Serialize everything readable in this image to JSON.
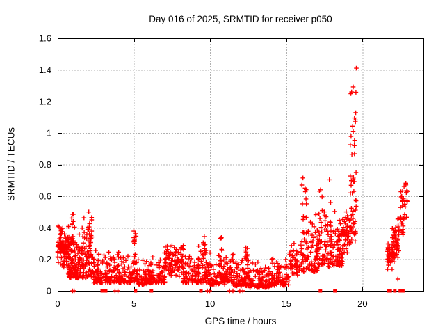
{
  "chart_data": {
    "type": "scatter",
    "title": "Day 016 of 2025, SRMTID for receiver p050",
    "xlabel": "GPS time / hours",
    "ylabel": "SRMTID / TECUs",
    "xlim": [
      0,
      24
    ],
    "ylim": [
      0,
      1.6
    ],
    "xticks": [
      0,
      5,
      10,
      15,
      20
    ],
    "yticks": [
      0,
      0.2,
      0.4,
      0.6,
      0.8,
      1,
      1.2,
      1.4,
      1.6
    ],
    "ytick_labels": [
      "0",
      "0.2",
      "0.4",
      "0.6",
      "0.8",
      "1",
      "1.2",
      "1.4",
      "1.6"
    ],
    "grid": true,
    "grid_style": "dotted",
    "legend": "none",
    "marker": {
      "shape": "plus",
      "color": "#ff0000",
      "size": 6.6,
      "stroke_width": 1.4
    },
    "colors": {
      "marker": "#ff0000",
      "grid": "#b0b0b0",
      "axis": "#000000",
      "text": "#000000",
      "background": "#ffffff"
    },
    "max_point": [
      19.4,
      1.46
    ],
    "scatter_segments": [
      {
        "x0": 0.0,
        "x1": 0.38,
        "n": 55,
        "y0": 0.13,
        "y1": 0.42,
        "skew": "mid"
      },
      {
        "x0": 0.35,
        "x1": 0.75,
        "n": 55,
        "y0": 0.1,
        "y1": 0.38,
        "skew": "mid"
      },
      {
        "x0": 0.7,
        "x1": 1.15,
        "n": 60,
        "y0": 0.08,
        "y1": 0.5,
        "skew": "low"
      },
      {
        "x0": 0.88,
        "x1": 1.05,
        "n": 10,
        "y0": 0.3,
        "y1": 0.5,
        "skew": "uniform"
      },
      {
        "x0": 1.1,
        "x1": 1.65,
        "n": 60,
        "y0": 0.08,
        "y1": 0.4,
        "skew": "low"
      },
      {
        "x0": 1.6,
        "x1": 2.3,
        "n": 70,
        "y0": 0.08,
        "y1": 0.5,
        "skew": "low"
      },
      {
        "x0": 1.95,
        "x1": 2.25,
        "n": 12,
        "y0": 0.3,
        "y1": 0.5,
        "skew": "uniform"
      },
      {
        "x0": 2.3,
        "x1": 3.05,
        "n": 55,
        "y0": 0.05,
        "y1": 0.3,
        "skew": "low"
      },
      {
        "x0": 3.0,
        "x1": 4.05,
        "n": 70,
        "y0": 0.05,
        "y1": 0.26,
        "skew": "low"
      },
      {
        "x0": 4.0,
        "x1": 4.85,
        "n": 55,
        "y0": 0.05,
        "y1": 0.24,
        "skew": "low"
      },
      {
        "x0": 4.8,
        "x1": 5.3,
        "n": 40,
        "y0": 0.06,
        "y1": 0.38,
        "skew": "low"
      },
      {
        "x0": 4.95,
        "x1": 5.15,
        "n": 8,
        "y0": 0.25,
        "y1": 0.38,
        "skew": "uniform"
      },
      {
        "x0": 5.25,
        "x1": 6.15,
        "n": 60,
        "y0": 0.04,
        "y1": 0.22,
        "skew": "low"
      },
      {
        "x0": 6.1,
        "x1": 7.05,
        "n": 65,
        "y0": 0.05,
        "y1": 0.26,
        "skew": "low"
      },
      {
        "x0": 7.0,
        "x1": 8.25,
        "n": 90,
        "y0": 0.07,
        "y1": 0.3,
        "skew": "mid"
      },
      {
        "x0": 8.2,
        "x1": 9.25,
        "n": 70,
        "y0": 0.05,
        "y1": 0.28,
        "skew": "low"
      },
      {
        "x0": 9.2,
        "x1": 9.95,
        "n": 55,
        "y0": 0.05,
        "y1": 0.33,
        "skew": "low"
      },
      {
        "x0": 9.5,
        "x1": 9.7,
        "n": 8,
        "y0": 0.22,
        "y1": 0.35,
        "skew": "uniform"
      },
      {
        "x0": 9.9,
        "x1": 11.0,
        "n": 75,
        "y0": 0.04,
        "y1": 0.28,
        "skew": "low"
      },
      {
        "x0": 10.55,
        "x1": 10.78,
        "n": 10,
        "y0": 0.15,
        "y1": 0.35,
        "skew": "uniform"
      },
      {
        "x0": 11.0,
        "x1": 11.55,
        "n": 40,
        "y0": 0.06,
        "y1": 0.3,
        "skew": "low"
      },
      {
        "x0": 11.5,
        "x1": 12.65,
        "n": 80,
        "y0": 0.03,
        "y1": 0.26,
        "skew": "low"
      },
      {
        "x0": 12.25,
        "x1": 12.5,
        "n": 10,
        "y0": 0.15,
        "y1": 0.3,
        "skew": "uniform"
      },
      {
        "x0": 12.6,
        "x1": 13.85,
        "n": 85,
        "y0": 0.02,
        "y1": 0.2,
        "skew": "low"
      },
      {
        "x0": 13.8,
        "x1": 15.25,
        "n": 90,
        "y0": 0.03,
        "y1": 0.22,
        "skew": "low"
      },
      {
        "x0": 15.2,
        "x1": 16.02,
        "n": 55,
        "y0": 0.05,
        "y1": 0.32,
        "skew": "mid"
      },
      {
        "x0": 16.0,
        "x1": 16.35,
        "n": 35,
        "y0": 0.12,
        "y1": 0.73,
        "skew": "pow"
      },
      {
        "x0": 16.3,
        "x1": 17.1,
        "n": 70,
        "y0": 0.12,
        "y1": 0.62,
        "skew": "low"
      },
      {
        "x0": 17.1,
        "x1": 17.95,
        "n": 75,
        "y0": 0.15,
        "y1": 0.77,
        "skew": "low"
      },
      {
        "x0": 17.9,
        "x1": 18.7,
        "n": 70,
        "y0": 0.16,
        "y1": 0.58,
        "skew": "low"
      },
      {
        "x0": 18.65,
        "x1": 19.2,
        "n": 45,
        "y0": 0.2,
        "y1": 0.55,
        "skew": "mid"
      },
      {
        "x0": 19.18,
        "x1": 19.6,
        "n": 55,
        "y0": 0.3,
        "y1": 1.47,
        "skew": "pow"
      },
      {
        "x0": 21.62,
        "x1": 22.12,
        "n": 45,
        "y0": 0.13,
        "y1": 0.34,
        "skew": "mid"
      },
      {
        "x0": 21.95,
        "x1": 22.4,
        "n": 40,
        "y0": 0.15,
        "y1": 0.43,
        "skew": "mid"
      },
      {
        "x0": 22.3,
        "x1": 22.72,
        "n": 20,
        "y0": 0.28,
        "y1": 0.55,
        "skew": "mid"
      },
      {
        "x0": 22.5,
        "x1": 22.95,
        "n": 20,
        "y0": 0.42,
        "y1": 0.71,
        "skew": "mid"
      }
    ],
    "zero_markers": [
      {
        "x": 0.98,
        "style": "tick"
      },
      {
        "x": 1.08,
        "style": "tick"
      },
      {
        "x": 2.92,
        "style": "square"
      },
      {
        "x": 3.15,
        "style": "square"
      },
      {
        "x": 3.76,
        "style": "tick"
      },
      {
        "x": 3.95,
        "style": "tick"
      },
      {
        "x": 5.1,
        "style": "square"
      },
      {
        "x": 6.15,
        "style": "square"
      },
      {
        "x": 9.4,
        "style": "square"
      },
      {
        "x": 9.82,
        "style": "tick"
      },
      {
        "x": 9.97,
        "style": "tick"
      },
      {
        "x": 11.28,
        "style": "tick"
      },
      {
        "x": 11.5,
        "style": "tick"
      },
      {
        "x": 11.95,
        "style": "tick"
      },
      {
        "x": 12.15,
        "style": "tick"
      },
      {
        "x": 17.24,
        "style": "square"
      },
      {
        "x": 18.19,
        "style": "square"
      },
      {
        "x": 21.7,
        "style": "square"
      },
      {
        "x": 21.82,
        "style": "square"
      },
      {
        "x": 22.12,
        "style": "square"
      },
      {
        "x": 22.48,
        "style": "square"
      },
      {
        "x": 22.65,
        "style": "square"
      }
    ],
    "extra_points": [
      [
        22.32,
        0.075
      ]
    ]
  }
}
